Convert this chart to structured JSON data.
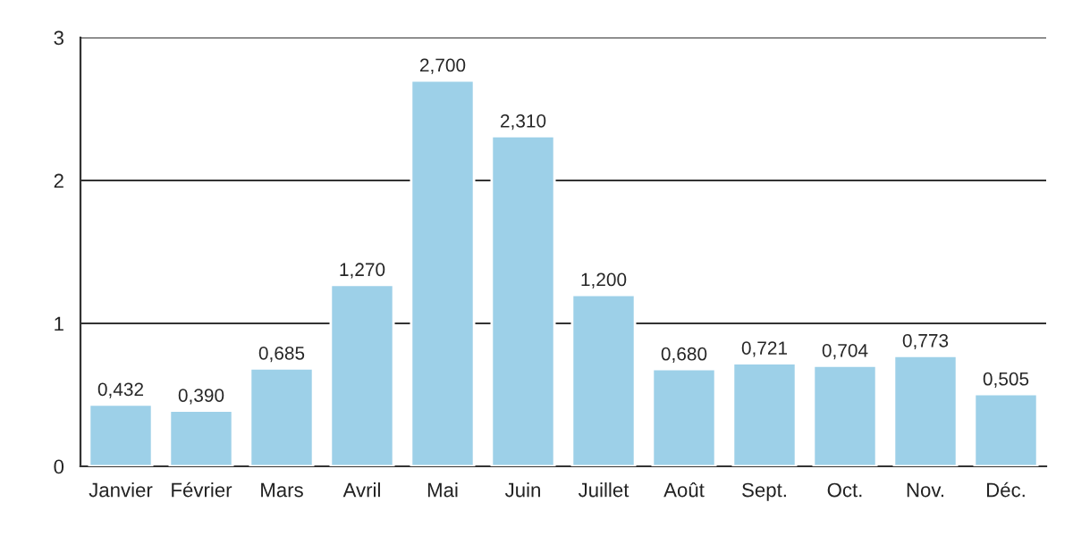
{
  "chart_data": {
    "type": "bar",
    "categories": [
      "Janvier",
      "Février",
      "Mars",
      "Avril",
      "Mai",
      "Juin",
      "Juillet",
      "Août",
      "Sept.",
      "Oct.",
      "Nov.",
      "Déc."
    ],
    "values": [
      0.432,
      0.39,
      0.685,
      1.27,
      2.7,
      2.31,
      1.2,
      0.68,
      0.721,
      0.704,
      0.773,
      0.505
    ],
    "value_labels": [
      "0,432",
      "0,390",
      "0,685",
      "1,270",
      "2,700",
      "2,310",
      "1,200",
      "0,680",
      "0,721",
      "0,704",
      "0,773",
      "0,505"
    ],
    "color": "#9dd0e8",
    "ylim": [
      0,
      3
    ],
    "yticks": [
      0,
      1,
      2,
      3
    ],
    "grid": "y",
    "legend": false
  }
}
